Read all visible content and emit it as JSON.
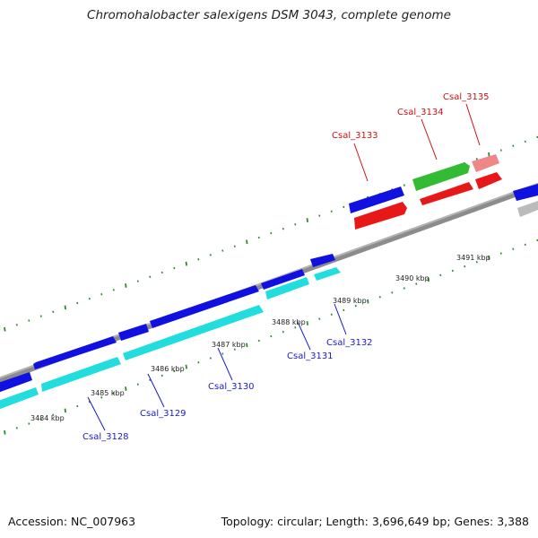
{
  "title": "Chromohalobacter salexigens DSM 3043, complete genome",
  "footer": {
    "accession_label": "Accession:",
    "accession": "NC_007963",
    "topology_label": "Topology:",
    "topology": "circular",
    "length_label": "Length:",
    "length": "3,696,649 bp",
    "genes_label": "Genes:",
    "genes": "3,388"
  },
  "colors": {
    "backbone": "#8c8c8c",
    "tick": "#2e8b2e",
    "forward_cds": "#1010e0",
    "forward_rna": "#22dddd",
    "reverse_cds": "#e81818",
    "reverse_alt": "#33bb33",
    "reverse_pink": "#ee8888",
    "grey_feature": "#bbbbbb",
    "label_blue": "#1a1acc",
    "label_red": "#cc1111"
  },
  "kbp_ticks": [
    "3484 kbp",
    "3485 kbp",
    "3486 kbp",
    "3487 kbp",
    "3488 kbp",
    "3489 kbp",
    "3490 kbp",
    "3491 kbp"
  ],
  "genes_forward": [
    {
      "name": "Csal_3128",
      "color": "#1a1acc"
    },
    {
      "name": "Csal_3129",
      "color": "#1a1acc"
    },
    {
      "name": "Csal_3130",
      "color": "#1a1acc"
    },
    {
      "name": "Csal_3131",
      "color": "#1a1acc"
    },
    {
      "name": "Csal_3132",
      "color": "#1a1acc"
    }
  ],
  "genes_reverse": [
    {
      "name": "Csal_3133",
      "color": "#cc1111"
    },
    {
      "name": "Csal_3134",
      "color": "#cc1111"
    },
    {
      "name": "Csal_3135",
      "color": "#cc1111"
    }
  ]
}
